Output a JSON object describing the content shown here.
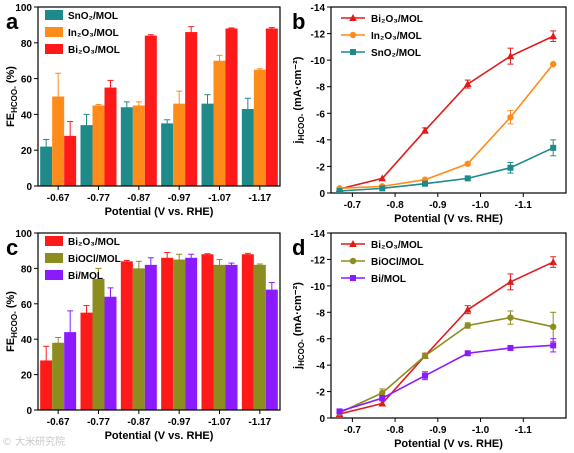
{
  "watermark": "© 大米研究院",
  "chart_data": [
    {
      "panel_label": "a",
      "type": "bar",
      "xlabel": "Potential (V vs. RHE)",
      "ylabel_base": "FE",
      "ylabel_sub": "HCOO-",
      "ylabel_unit": " (%)",
      "ylim": [
        0,
        100
      ],
      "yticks": [
        0,
        20,
        40,
        60,
        80,
        100
      ],
      "categories": [
        "-0.67",
        "-0.77",
        "-0.87",
        "-0.97",
        "-1.07",
        "-1.17"
      ],
      "legend_position": "top-left",
      "series": [
        {
          "name": "SnO₂/MOL",
          "color": "#1f8a8a",
          "values": [
            22,
            34,
            44,
            35,
            46,
            43
          ],
          "errors": [
            4,
            6,
            3,
            2,
            5,
            6
          ]
        },
        {
          "name": "In₂O₃/MOL",
          "color": "#ff8c1a",
          "values": [
            50,
            45,
            45,
            46,
            70,
            65
          ],
          "errors": [
            13,
            0.5,
            2,
            7,
            3,
            0.5
          ]
        },
        {
          "name": "Bi₂O₃/MOL",
          "color": "#ff1a1a",
          "values": [
            28,
            55,
            84,
            86,
            88,
            88
          ],
          "errors": [
            8,
            4,
            0.5,
            3,
            0.3,
            0.5
          ]
        }
      ]
    },
    {
      "panel_label": "b",
      "type": "line",
      "xlabel": "Potential (V vs. RHE)",
      "ylabel_base": "j",
      "ylabel_sub": "HCOO-",
      "ylabel_unit": " (mA·cm⁻²)",
      "xlim": [
        -0.65,
        -1.2
      ],
      "ylim": [
        0,
        -14
      ],
      "xticks": [
        -0.7,
        -0.8,
        -0.9,
        -1.0,
        -1.1
      ],
      "xtick_labels": [
        "-0.7",
        "-0.8",
        "-0.9",
        "-1.0",
        "-1.1"
      ],
      "yticks": [
        0,
        -2,
        -4,
        -6,
        -8,
        -10,
        -12,
        -14
      ],
      "ytick_labels": [
        "0",
        "-2",
        "-4",
        "-6",
        "-8",
        "-10",
        "-12",
        "-14"
      ],
      "x": [
        -0.67,
        -0.77,
        -0.87,
        -0.97,
        -1.07,
        -1.17
      ],
      "legend_position": "top-left",
      "series": [
        {
          "name": "Bi₂O₃/MOL",
          "color": "#e01b1b",
          "marker": "triangle",
          "values": [
            -0.3,
            -1.1,
            -4.7,
            -8.2,
            -10.3,
            -11.8
          ],
          "errors": [
            0.1,
            0.1,
            0.2,
            0.3,
            0.6,
            0.4
          ]
        },
        {
          "name": "In₂O₃/MOL",
          "color": "#ff8c1a",
          "marker": "circle",
          "values": [
            -0.35,
            -0.5,
            -1.0,
            -2.2,
            -5.7,
            -9.7
          ],
          "errors": [
            0.05,
            0.05,
            0.1,
            0.1,
            0.5,
            0.1
          ]
        },
        {
          "name": "SnO₂/MOL",
          "color": "#1f8a8a",
          "marker": "square",
          "values": [
            -0.15,
            -0.35,
            -0.7,
            -1.1,
            -1.9,
            -3.4
          ],
          "errors": [
            0.05,
            0.05,
            0.1,
            0.1,
            0.4,
            0.6
          ]
        }
      ]
    },
    {
      "panel_label": "c",
      "type": "bar",
      "xlabel": "Potential (V vs. RHE)",
      "ylabel_base": "FE",
      "ylabel_sub": "HCOO-",
      "ylabel_unit": " (%)",
      "ylim": [
        0,
        100
      ],
      "yticks": [
        0,
        20,
        40,
        60,
        80,
        100
      ],
      "categories": [
        "-0.67",
        "-0.77",
        "-0.87",
        "-0.97",
        "-1.07",
        "-1.17"
      ],
      "legend_position": "top-left",
      "series": [
        {
          "name": "Bi₂O₃/MOL",
          "color": "#ff1a1a",
          "values": [
            28,
            55,
            84,
            86,
            88,
            88
          ],
          "errors": [
            8,
            4,
            0.5,
            3,
            0.3,
            0.5
          ]
        },
        {
          "name": "BiOCl/MOL",
          "color": "#8c8c1f",
          "values": [
            38,
            74,
            80,
            85,
            82,
            82
          ],
          "errors": [
            3,
            6,
            4,
            3,
            3,
            0.5
          ]
        },
        {
          "name": "Bi/MOL",
          "color": "#8c1aff",
          "values": [
            44,
            64,
            82,
            86,
            82,
            68
          ],
          "errors": [
            12,
            5,
            4,
            2,
            1,
            4
          ]
        }
      ]
    },
    {
      "panel_label": "d",
      "type": "line",
      "xlabel": "Potential (V vs. RHE)",
      "ylabel_base": "j",
      "ylabel_sub": "HCOO-",
      "ylabel_unit": " (mA·cm⁻²)",
      "xlim": [
        -0.65,
        -1.2
      ],
      "ylim": [
        0,
        -14
      ],
      "xticks": [
        -0.7,
        -0.8,
        -0.9,
        -1.0,
        -1.1
      ],
      "xtick_labels": [
        "-0.7",
        "-0.8",
        "-0.9",
        "-1.0",
        "-1.1"
      ],
      "yticks": [
        0,
        -2,
        -4,
        -6,
        -8,
        -10,
        -12,
        -14
      ],
      "ytick_labels": [
        "0",
        "-2",
        "-4",
        "-6",
        "-8",
        "-10",
        "-12",
        "-14"
      ],
      "x": [
        -0.67,
        -0.77,
        -0.87,
        -0.97,
        -1.07,
        -1.17
      ],
      "legend_position": "top-left",
      "series": [
        {
          "name": "Bi₂O₃/MOL",
          "color": "#e01b1b",
          "marker": "triangle",
          "values": [
            -0.3,
            -1.1,
            -4.7,
            -8.2,
            -10.3,
            -11.8
          ],
          "errors": [
            0.1,
            0.1,
            0.2,
            0.3,
            0.6,
            0.4
          ]
        },
        {
          "name": "BiOCl/MOL",
          "color": "#8c8c1f",
          "marker": "circle",
          "values": [
            -0.4,
            -1.9,
            -4.7,
            -7.0,
            -7.6,
            -6.9
          ],
          "errors": [
            0.1,
            0.3,
            0.2,
            0.2,
            0.5,
            1.1
          ]
        },
        {
          "name": "Bi/MOL",
          "color": "#8c1aff",
          "marker": "square",
          "values": [
            -0.5,
            -1.5,
            -3.2,
            -4.9,
            -5.3,
            -5.5
          ],
          "errors": [
            0.1,
            0.2,
            0.3,
            0.1,
            0.1,
            0.5
          ]
        }
      ]
    }
  ]
}
